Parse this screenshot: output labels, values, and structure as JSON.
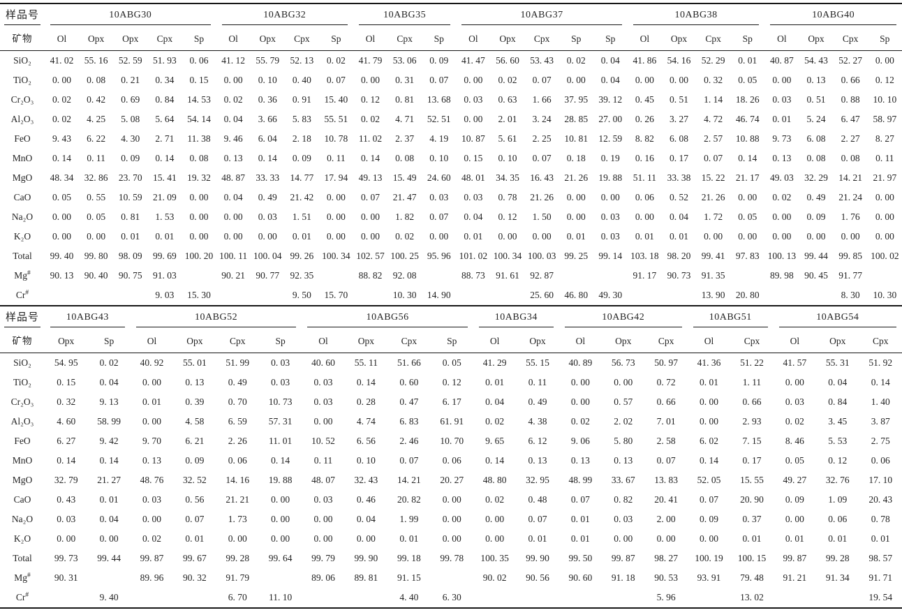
{
  "header_labels": {
    "sample": "样品号",
    "mineral": "矿物"
  },
  "row_labels": [
    "SiO₂",
    "TiO₂",
    "Cr₂O₃",
    "Al₂O₃",
    "FeO",
    "MnO",
    "MgO",
    "CaO",
    "Na₂O",
    "K₂O",
    "Total",
    "Mg#",
    "Cr#"
  ],
  "colors": {
    "text": "#232323",
    "rule": "#161616",
    "background": "#ffffff"
  },
  "tables": [
    {
      "name": "top",
      "groups": [
        {
          "sample": "10ABG30",
          "minerals": [
            "Ol",
            "Opx",
            "Opx",
            "Cpx",
            "Sp"
          ]
        },
        {
          "sample": "10ABG32",
          "minerals": [
            "Ol",
            "Opx",
            "Cpx",
            "Sp"
          ]
        },
        {
          "sample": "10ABG35",
          "minerals": [
            "Ol",
            "Cpx",
            "Sp"
          ]
        },
        {
          "sample": "10ABG37",
          "minerals": [
            "Ol",
            "Opx",
            "Cpx",
            "Sp",
            "Sp"
          ]
        },
        {
          "sample": "10ABG38",
          "minerals": [
            "Ol",
            "Opx",
            "Cpx",
            "Sp"
          ]
        },
        {
          "sample": "10ABG40",
          "minerals": [
            "Ol",
            "Opx",
            "Cpx",
            "Sp"
          ]
        }
      ],
      "rows": [
        [
          "41.02",
          "55.16",
          "52.59",
          "51.93",
          "0.06",
          "41.12",
          "55.79",
          "52.13",
          "0.02",
          "41.79",
          "53.06",
          "0.09",
          "41.47",
          "56.60",
          "53.43",
          "0.02",
          "0.04",
          "41.86",
          "54.16",
          "52.29",
          "0.01",
          "40.87",
          "54.43",
          "52.27",
          "0.00"
        ],
        [
          "0.00",
          "0.08",
          "0.21",
          "0.34",
          "0.15",
          "0.00",
          "0.10",
          "0.40",
          "0.07",
          "0.00",
          "0.31",
          "0.07",
          "0.00",
          "0.02",
          "0.07",
          "0.00",
          "0.04",
          "0.00",
          "0.00",
          "0.32",
          "0.05",
          "0.00",
          "0.13",
          "0.66",
          "0.12"
        ],
        [
          "0.02",
          "0.42",
          "0.69",
          "0.84",
          "14.53",
          "0.02",
          "0.36",
          "0.91",
          "15.40",
          "0.12",
          "0.81",
          "13.68",
          "0.03",
          "0.63",
          "1.66",
          "37.95",
          "39.12",
          "0.45",
          "0.51",
          "1.14",
          "18.26",
          "0.03",
          "0.51",
          "0.88",
          "10.10"
        ],
        [
          "0.02",
          "4.25",
          "5.08",
          "5.64",
          "54.14",
          "0.04",
          "3.66",
          "5.83",
          "55.51",
          "0.02",
          "4.71",
          "52.51",
          "0.00",
          "2.01",
          "3.24",
          "28.85",
          "27.00",
          "0.26",
          "3.27",
          "4.72",
          "46.74",
          "0.01",
          "5.24",
          "6.47",
          "58.97"
        ],
        [
          "9.43",
          "6.22",
          "4.30",
          "2.71",
          "11.38",
          "9.46",
          "6.04",
          "2.18",
          "10.78",
          "11.02",
          "2.37",
          "4.19",
          "10.87",
          "5.61",
          "2.25",
          "10.81",
          "12.59",
          "8.82",
          "6.08",
          "2.57",
          "10.88",
          "9.73",
          "6.08",
          "2.27",
          "8.27"
        ],
        [
          "0.14",
          "0.11",
          "0.09",
          "0.14",
          "0.08",
          "0.13",
          "0.14",
          "0.09",
          "0.11",
          "0.14",
          "0.08",
          "0.10",
          "0.15",
          "0.10",
          "0.07",
          "0.18",
          "0.19",
          "0.16",
          "0.17",
          "0.07",
          "0.14",
          "0.13",
          "0.08",
          "0.08",
          "0.11"
        ],
        [
          "48.34",
          "32.86",
          "23.70",
          "15.41",
          "19.32",
          "48.87",
          "33.33",
          "14.77",
          "17.94",
          "49.13",
          "15.49",
          "24.60",
          "48.01",
          "34.35",
          "16.43",
          "21.26",
          "19.88",
          "51.11",
          "33.38",
          "15.22",
          "21.17",
          "49.03",
          "32.29",
          "14.21",
          "21.97"
        ],
        [
          "0.05",
          "0.55",
          "10.59",
          "21.09",
          "0.00",
          "0.04",
          "0.49",
          "21.42",
          "0.00",
          "0.07",
          "21.47",
          "0.03",
          "0.03",
          "0.78",
          "21.26",
          "0.00",
          "0.00",
          "0.06",
          "0.52",
          "21.26",
          "0.00",
          "0.02",
          "0.49",
          "21.24",
          "0.00"
        ],
        [
          "0.00",
          "0.05",
          "0.81",
          "1.53",
          "0.00",
          "0.00",
          "0.03",
          "1.51",
          "0.00",
          "0.00",
          "1.82",
          "0.07",
          "0.04",
          "0.12",
          "1.50",
          "0.00",
          "0.03",
          "0.00",
          "0.04",
          "1.72",
          "0.05",
          "0.00",
          "0.09",
          "1.76",
          "0.00"
        ],
        [
          "0.00",
          "0.00",
          "0.01",
          "0.01",
          "0.00",
          "0.00",
          "0.00",
          "0.01",
          "0.00",
          "0.00",
          "0.02",
          "0.00",
          "0.01",
          "0.00",
          "0.00",
          "0.01",
          "0.03",
          "0.01",
          "0.01",
          "0.00",
          "0.00",
          "0.00",
          "0.00",
          "0.00",
          "0.00"
        ],
        [
          "99.40",
          "99.80",
          "98.09",
          "99.69",
          "100.20",
          "100.11",
          "100.04",
          "99.26",
          "100.34",
          "102.57",
          "100.25",
          "95.96",
          "101.02",
          "100.34",
          "100.03",
          "99.25",
          "99.14",
          "103.18",
          "98.20",
          "99.41",
          "97.83",
          "100.13",
          "99.44",
          "99.85",
          "100.02"
        ],
        [
          "90.13",
          "90.40",
          "90.75",
          "91.03",
          "",
          "90.21",
          "90.77",
          "92.35",
          "",
          "88.82",
          "92.08",
          "",
          "88.73",
          "91.61",
          "92.87",
          "",
          "",
          "91.17",
          "90.73",
          "91.35",
          "",
          "89.98",
          "90.45",
          "91.77",
          ""
        ],
        [
          "",
          "",
          "",
          "9.03",
          "15.30",
          "",
          "",
          "9.50",
          "15.70",
          "",
          "10.30",
          "14.90",
          "",
          "",
          "25.60",
          "46.80",
          "49.30",
          "",
          "",
          "13.90",
          "20.80",
          "",
          "",
          "8.30",
          "10.30"
        ]
      ]
    },
    {
      "name": "bottom",
      "groups": [
        {
          "sample": "10ABG43",
          "minerals": [
            "Opx",
            "Sp"
          ]
        },
        {
          "sample": "10ABG52",
          "minerals": [
            "Ol",
            "Opx",
            "Cpx",
            "Sp"
          ]
        },
        {
          "sample": "10ABG56",
          "minerals": [
            "Ol",
            "Opx",
            "Cpx",
            "Sp"
          ]
        },
        {
          "sample": "10ABG34",
          "minerals": [
            "Ol",
            "Opx"
          ]
        },
        {
          "sample": "10ABG42",
          "minerals": [
            "Ol",
            "Opx",
            "Cpx"
          ]
        },
        {
          "sample": "10ABG51",
          "minerals": [
            "Ol",
            "Cpx"
          ]
        },
        {
          "sample": "10ABG54",
          "minerals": [
            "Ol",
            "Opx",
            "Cpx"
          ]
        }
      ],
      "rows": [
        [
          "54.95",
          "0.02",
          "40.92",
          "55.01",
          "51.99",
          "0.03",
          "40.60",
          "55.11",
          "51.66",
          "0.05",
          "41.29",
          "55.15",
          "40.89",
          "56.73",
          "50.97",
          "41.36",
          "51.22",
          "41.57",
          "55.31",
          "51.92"
        ],
        [
          "0.15",
          "0.04",
          "0.00",
          "0.13",
          "0.49",
          "0.03",
          "0.03",
          "0.14",
          "0.60",
          "0.12",
          "0.01",
          "0.11",
          "0.00",
          "0.00",
          "0.72",
          "0.01",
          "1.11",
          "0.00",
          "0.04",
          "0.14"
        ],
        [
          "0.32",
          "9.13",
          "0.01",
          "0.39",
          "0.70",
          "10.73",
          "0.03",
          "0.28",
          "0.47",
          "6.17",
          "0.04",
          "0.49",
          "0.00",
          "0.57",
          "0.66",
          "0.00",
          "0.66",
          "0.03",
          "0.84",
          "1.40"
        ],
        [
          "4.60",
          "58.99",
          "0.00",
          "4.58",
          "6.59",
          "57.31",
          "0.00",
          "4.74",
          "6.83",
          "61.91",
          "0.02",
          "4.38",
          "0.02",
          "2.02",
          "7.01",
          "0.00",
          "2.93",
          "0.02",
          "3.45",
          "3.87"
        ],
        [
          "6.27",
          "9.42",
          "9.70",
          "6.21",
          "2.26",
          "11.01",
          "10.52",
          "6.56",
          "2.46",
          "10.70",
          "9.65",
          "6.12",
          "9.06",
          "5.80",
          "2.58",
          "6.02",
          "7.15",
          "8.46",
          "5.53",
          "2.75"
        ],
        [
          "0.14",
          "0.14",
          "0.13",
          "0.09",
          "0.06",
          "0.14",
          "0.11",
          "0.10",
          "0.07",
          "0.06",
          "0.14",
          "0.13",
          "0.13",
          "0.13",
          "0.07",
          "0.14",
          "0.17",
          "0.05",
          "0.12",
          "0.06"
        ],
        [
          "32.79",
          "21.27",
          "48.76",
          "32.52",
          "14.16",
          "19.88",
          "48.07",
          "32.43",
          "14.21",
          "20.27",
          "48.80",
          "32.95",
          "48.99",
          "33.67",
          "13.83",
          "52.05",
          "15.55",
          "49.27",
          "32.76",
          "17.10"
        ],
        [
          "0.43",
          "0.01",
          "0.03",
          "0.56",
          "21.21",
          "0.00",
          "0.03",
          "0.46",
          "20.82",
          "0.00",
          "0.02",
          "0.48",
          "0.07",
          "0.82",
          "20.41",
          "0.07",
          "20.90",
          "0.09",
          "1.09",
          "20.43"
        ],
        [
          "0.03",
          "0.04",
          "0.00",
          "0.07",
          "1.73",
          "0.00",
          "0.00",
          "0.04",
          "1.99",
          "0.00",
          "0.00",
          "0.07",
          "0.01",
          "0.03",
          "2.00",
          "0.09",
          "0.37",
          "0.00",
          "0.06",
          "0.78"
        ],
        [
          "0.00",
          "0.00",
          "0.02",
          "0.01",
          "0.00",
          "0.00",
          "0.00",
          "0.00",
          "0.01",
          "0.00",
          "0.00",
          "0.01",
          "0.01",
          "0.00",
          "0.00",
          "0.00",
          "0.01",
          "0.01",
          "0.01",
          "0.01"
        ],
        [
          "99.73",
          "99.44",
          "99.87",
          "99.67",
          "99.28",
          "99.64",
          "99.79",
          "99.90",
          "99.18",
          "99.78",
          "100.35",
          "99.90",
          "99.50",
          "99.87",
          "98.27",
          "100.19",
          "100.15",
          "99.87",
          "99.28",
          "98.57"
        ],
        [
          "90.31",
          "",
          "89.96",
          "90.32",
          "91.79",
          "",
          "89.06",
          "89.81",
          "91.15",
          "",
          "90.02",
          "90.56",
          "90.60",
          "91.18",
          "90.53",
          "93.91",
          "79.48",
          "91.21",
          "91.34",
          "91.71"
        ],
        [
          "",
          "9.40",
          "",
          "",
          "6.70",
          "11.10",
          "",
          "",
          "4.40",
          "6.30",
          "",
          "",
          "",
          "",
          "5.96",
          "",
          "13.02",
          "",
          "",
          "19.54"
        ]
      ]
    }
  ]
}
